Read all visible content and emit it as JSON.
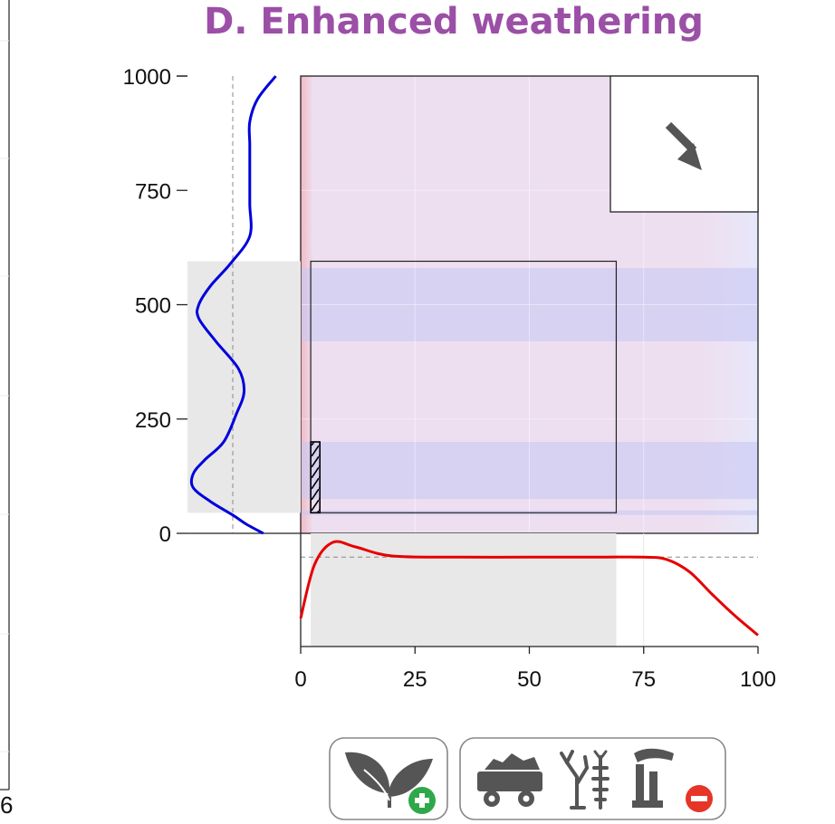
{
  "title": "D. Enhanced weathering",
  "edge_text": "6",
  "colors": {
    "title": "#9b4fa6",
    "main_bg": "#eddff0",
    "blue_band": "#c8c8f4",
    "red_edge": "#f4c4cc",
    "blue_curve": "#0000dd",
    "red_curve": "#e60000",
    "shade": "#e8e8e8",
    "arrow": "#555555",
    "icon_gray": "#555555",
    "plus_green": "#2ea84a",
    "minus_red": "#e63426"
  },
  "chart_data": {
    "type": "heatmap",
    "title": "D. Enhanced weathering",
    "xlabel": "",
    "ylabel": "",
    "xlim": [
      0,
      100
    ],
    "ylim": [
      0,
      1000
    ],
    "xticks": [
      "0",
      "25",
      "50",
      "75",
      "100"
    ],
    "yticks": [
      "0",
      "250",
      "500",
      "750",
      "1000"
    ],
    "grid": true,
    "horizontal_bands": [
      {
        "y0": 420,
        "y1": 580
      },
      {
        "y0": 145,
        "y1": 200
      },
      {
        "y0": 75,
        "y1": 145
      },
      {
        "y0": 40,
        "y1": 50
      }
    ],
    "ranges_box": {
      "x0": 2.2,
      "x1": 69,
      "y0": 45,
      "y1": 595
    },
    "hatched_box": {
      "x0": 2.2,
      "x1": 4,
      "y0": 45,
      "y1": 200
    },
    "marginal_x_curve": {
      "x": [
        0,
        3,
        7,
        12,
        20,
        35,
        50,
        65,
        75,
        80,
        85,
        90,
        95,
        100
      ],
      "y": [
        0.25,
        0.72,
        0.92,
        0.88,
        0.8,
        0.79,
        0.79,
        0.79,
        0.79,
        0.77,
        0.66,
        0.46,
        0.27,
        0.1
      ],
      "reference": 0.79,
      "shade_range": [
        2.2,
        69
      ]
    },
    "marginal_y_curve": {
      "y": [
        0,
        20,
        40,
        70,
        100,
        130,
        160,
        200,
        260,
        310,
        360,
        420,
        470,
        500,
        540,
        590,
        650,
        720,
        790,
        850,
        900,
        950,
        1000
      ],
      "v": [
        0.33,
        0.48,
        0.6,
        0.8,
        0.95,
        0.95,
        0.85,
        0.68,
        0.57,
        0.5,
        0.55,
        0.75,
        0.9,
        0.9,
        0.8,
        0.62,
        0.45,
        0.45,
        0.45,
        0.45,
        0.45,
        0.38,
        0.22
      ],
      "reference": 0.6,
      "shade_range": [
        45,
        595
      ]
    },
    "inset_arrow": "down-right"
  },
  "icons": {
    "group1": [
      "plant-leaves-icon",
      "plus-icon"
    ],
    "group2": [
      "coal-cart-icon",
      "dead-tree-fish-icon",
      "factory-icon",
      "minus-icon"
    ]
  }
}
